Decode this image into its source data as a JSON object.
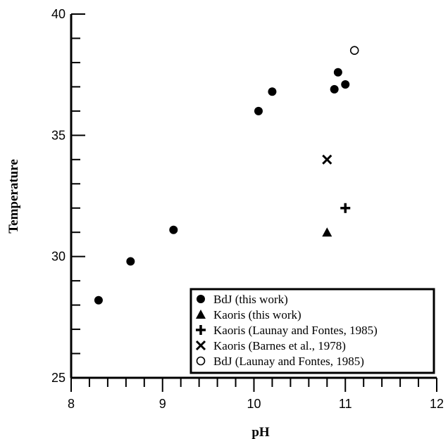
{
  "chart_data": {
    "type": "scatter",
    "xlabel": "pH",
    "ylabel": "Temperature",
    "xlim": [
      8,
      12
    ],
    "ylim": [
      25,
      40
    ],
    "x_ticks": [
      8,
      9,
      10,
      11,
      12
    ],
    "y_ticks": [
      25,
      30,
      35,
      40
    ],
    "x_minor_step": 0.2,
    "y_minor_step": 1,
    "grid": false,
    "legend_position": "bottom-right",
    "series": [
      {
        "name": "BdJ (this work)",
        "marker": "filled-circle",
        "points": [
          {
            "x": 8.3,
            "y": 28.2
          },
          {
            "x": 8.65,
            "y": 29.8
          },
          {
            "x": 9.12,
            "y": 31.1
          },
          {
            "x": 10.05,
            "y": 36.0
          },
          {
            "x": 10.2,
            "y": 36.8
          },
          {
            "x": 10.88,
            "y": 36.9
          },
          {
            "x": 10.92,
            "y": 37.6
          },
          {
            "x": 11.0,
            "y": 37.1
          }
        ]
      },
      {
        "name": "Kaoris (this work)",
        "marker": "filled-triangle",
        "points": [
          {
            "x": 10.8,
            "y": 31.0
          }
        ]
      },
      {
        "name": "Kaoris (Launay and Fontes, 1985)",
        "marker": "plus",
        "points": [
          {
            "x": 11.0,
            "y": 32.0
          }
        ]
      },
      {
        "name": "Kaoris (Barnes et al., 1978)",
        "marker": "cross",
        "points": [
          {
            "x": 10.8,
            "y": 34.0
          }
        ]
      },
      {
        "name": "BdJ (Launay and Fontes, 1985)",
        "marker": "open-circle",
        "points": [
          {
            "x": 11.1,
            "y": 38.5
          }
        ]
      }
    ],
    "colors": {
      "marker": "#000000",
      "axis": "#000000",
      "background": "#ffffff"
    }
  }
}
